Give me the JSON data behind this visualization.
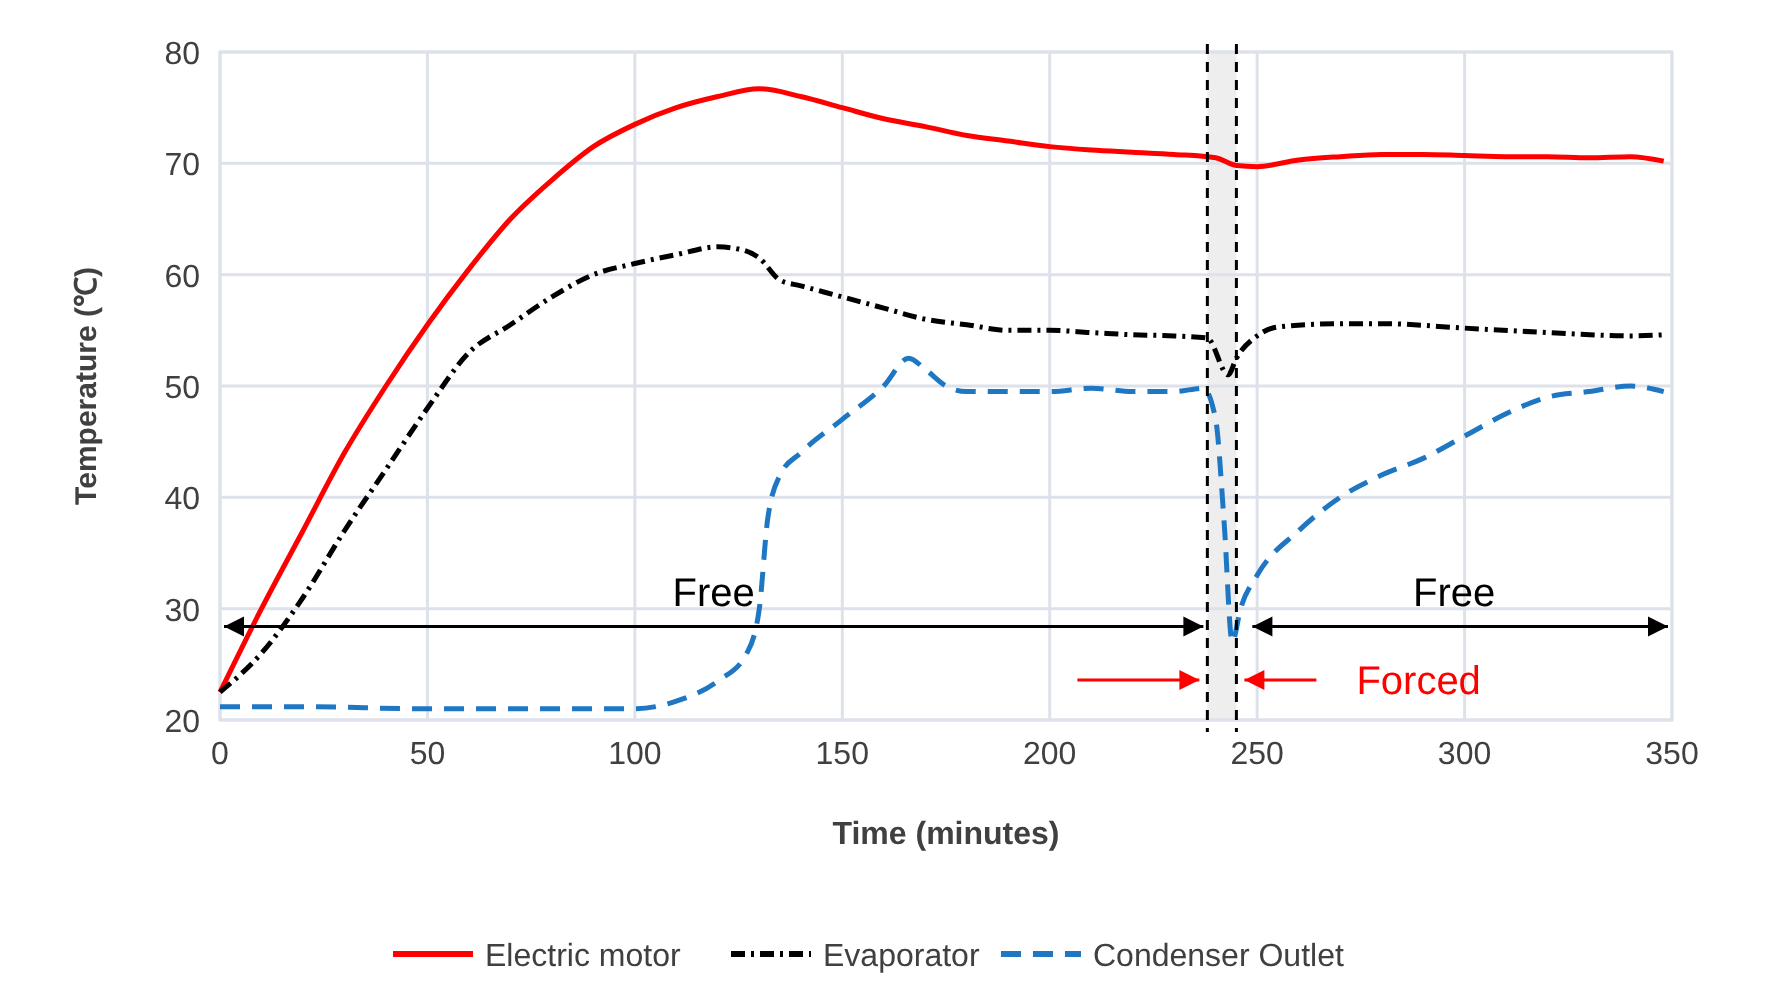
{
  "chart_data": {
    "type": "line",
    "xlabel": "Time (minutes)",
    "ylabel": "Temperature (℃)",
    "xlim": [
      0,
      350
    ],
    "xticks": [
      0,
      50,
      100,
      150,
      200,
      250,
      300,
      350
    ],
    "ylim": [
      20,
      80
    ],
    "yticks": [
      20,
      30,
      40,
      50,
      60,
      70,
      80
    ],
    "grid": true,
    "legend": "bottom",
    "series": [
      {
        "name": "Electric motor",
        "color": "#ff0000",
        "line_style": "solid",
        "x": [
          0,
          10,
          20,
          30,
          40,
          50,
          60,
          70,
          80,
          90,
          100,
          110,
          120,
          130,
          140,
          150,
          160,
          170,
          180,
          190,
          200,
          210,
          220,
          230,
          240,
          245,
          250,
          260,
          270,
          280,
          290,
          300,
          310,
          320,
          330,
          340,
          348
        ],
        "values": [
          22.5,
          30,
          37,
          44,
          50,
          55.5,
          60.5,
          65,
          68.5,
          71.5,
          73.5,
          75,
          76,
          76.7,
          76,
          75,
          74,
          73.3,
          72.5,
          72,
          71.5,
          71.2,
          71,
          70.8,
          70.5,
          69.8,
          69.7,
          70.3,
          70.6,
          70.8,
          70.8,
          70.7,
          70.6,
          70.6,
          70.5,
          70.6,
          70.2
        ]
      },
      {
        "name": "Evaporator",
        "color": "#000000",
        "line_style": "dotted",
        "x": [
          0,
          10,
          20,
          30,
          40,
          50,
          60,
          70,
          80,
          90,
          100,
          110,
          120,
          125,
          130,
          135,
          140,
          150,
          160,
          170,
          180,
          190,
          200,
          210,
          220,
          230,
          238,
          243,
          245,
          250,
          255,
          270,
          280,
          300,
          320,
          340,
          348
        ],
        "values": [
          22.5,
          26,
          31,
          37,
          42.5,
          48,
          53,
          55.5,
          58,
          60,
          61,
          61.8,
          62.5,
          62.3,
          61.5,
          59.5,
          59,
          58,
          57,
          56,
          55.5,
          55,
          55,
          54.8,
          54.6,
          54.5,
          54.3,
          51,
          52.5,
          54.5,
          55.3,
          55.6,
          55.6,
          55.2,
          54.8,
          54.5,
          54.6
        ]
      },
      {
        "name": "Condenser Outlet",
        "color": "#1f77c4",
        "line_style": "dashed",
        "x": [
          0,
          20,
          50,
          80,
          100,
          110,
          120,
          127,
          130,
          132,
          135,
          140,
          150,
          160,
          166,
          170,
          175,
          180,
          190,
          200,
          210,
          220,
          230,
          237,
          240,
          242,
          244,
          246,
          250,
          260,
          270,
          280,
          290,
          300,
          310,
          320,
          330,
          340,
          348
        ],
        "values": [
          21.2,
          21.2,
          21,
          21,
          21,
          21.7,
          23.5,
          26,
          30,
          38,
          42,
          44,
          47,
          50,
          52.5,
          51.5,
          50,
          49.5,
          49.5,
          49.5,
          49.8,
          49.5,
          49.5,
          49.8,
          47,
          38,
          27,
          30,
          33,
          37,
          40,
          42,
          43.5,
          45.5,
          47.5,
          49,
          49.5,
          50,
          49.5
        ]
      }
    ],
    "ref_lines": [
      {
        "axis": "x",
        "value": 238,
        "line_style": "dashed",
        "color": "#000000"
      },
      {
        "axis": "x",
        "value": 245,
        "line_style": "dashed",
        "color": "#000000"
      }
    ],
    "bands": [
      {
        "axis": "x",
        "from": 238,
        "to": 245,
        "color": "#eeeeee"
      }
    ],
    "annotations": [
      "Free",
      "Free",
      "Forced"
    ]
  }
}
